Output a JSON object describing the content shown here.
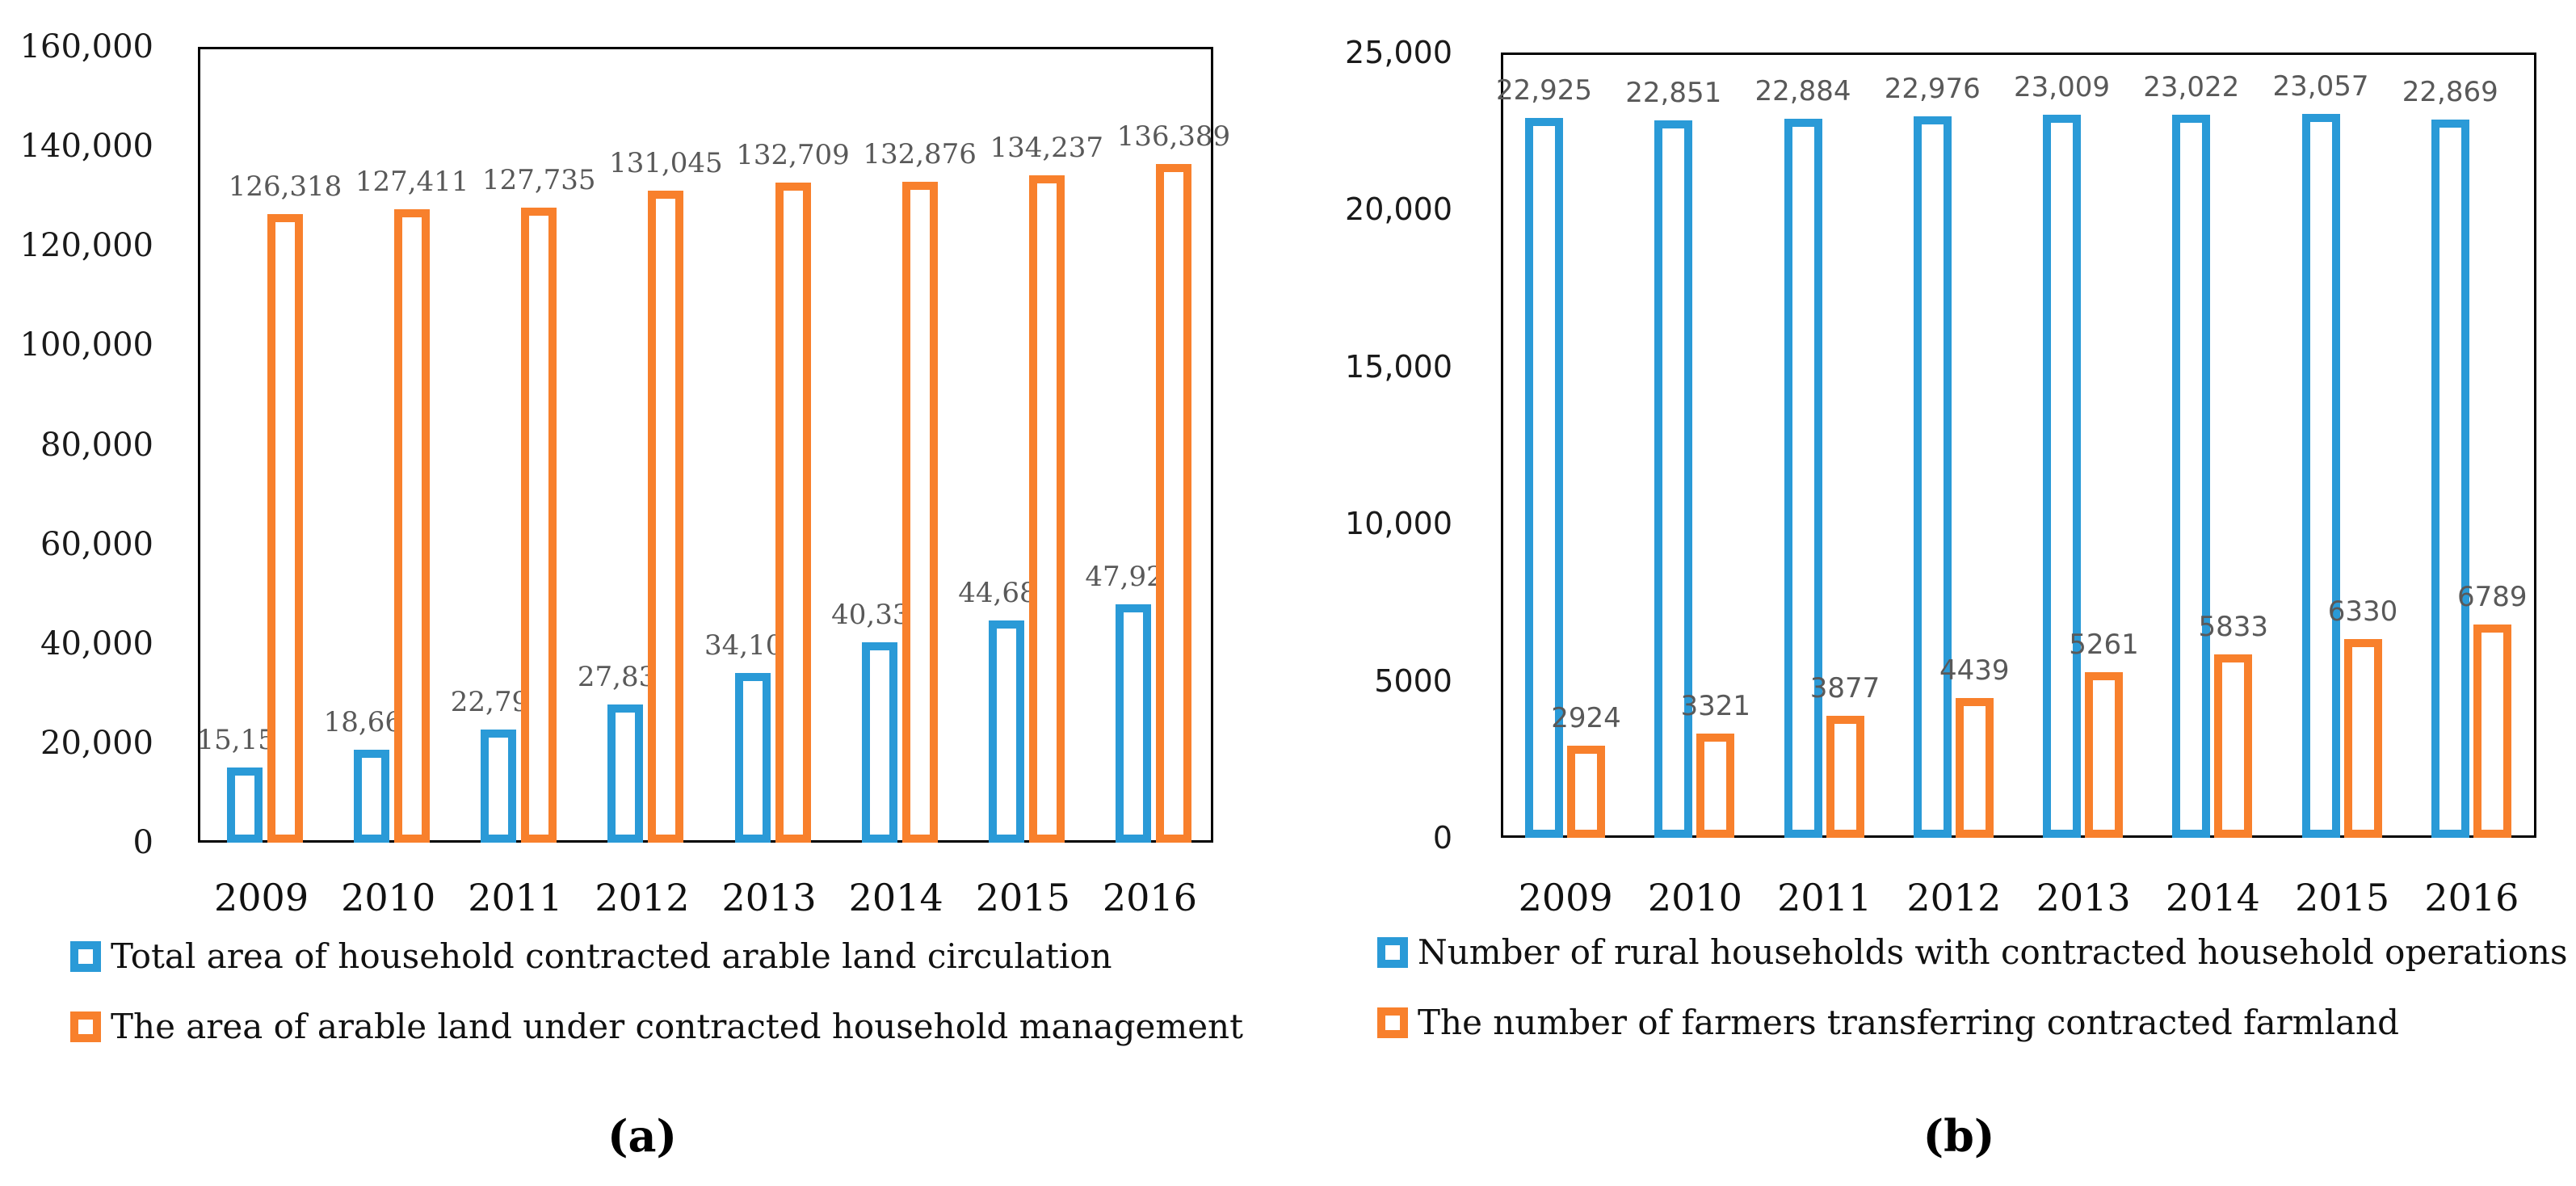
{
  "figure": {
    "captions": [
      "(a)",
      "(b)"
    ]
  },
  "colors": {
    "blue": "#2A9AD7",
    "orange": "#F8802C",
    "data_label_gray": "#595959",
    "axis_black": "#000000",
    "background": "#FFFFFF"
  },
  "chart_data": [
    {
      "id": "a",
      "type": "bar",
      "title": "",
      "xlabel": "",
      "ylabel": "",
      "caption": "(a)",
      "grid": false,
      "legend_position": "bottom-left",
      "categories": [
        "2009",
        "2010",
        "2011",
        "2012",
        "2013",
        "2014",
        "2015",
        "2016"
      ],
      "ylim": [
        0,
        160000
      ],
      "yticks": [
        {
          "value": 160000,
          "label": "160,000"
        },
        {
          "value": 140000,
          "label": "140,000"
        },
        {
          "value": 120000,
          "label": "120,000"
        },
        {
          "value": 100000,
          "label": "100,000"
        },
        {
          "value": 80000,
          "label": "80,000"
        },
        {
          "value": 60000,
          "label": "60,000"
        },
        {
          "value": 40000,
          "label": "40,000"
        },
        {
          "value": 20000,
          "label": "20,000"
        },
        {
          "value": 0,
          "label": "0"
        }
      ],
      "series": [
        {
          "key": "blue",
          "name": "Total area of household contracted arable land circulation",
          "color": "#2A9AD7",
          "values": [
            15154,
            18668,
            22793,
            27833,
            34102,
            40339,
            44683,
            47921
          ],
          "labels": [
            "15,154",
            "18,668",
            "22,793",
            "27,833",
            "34,102",
            "40,339",
            "44,683",
            "47,921"
          ]
        },
        {
          "key": "orange",
          "name": "The area of arable land under contracted household management",
          "color": "#F8802C",
          "values": [
            126318,
            127411,
            127735,
            131045,
            132709,
            132876,
            134237,
            136389
          ],
          "labels": [
            "126,318",
            "127,411",
            "127,735",
            "131,045",
            "132,709",
            "132,876",
            "134,237",
            "136,389"
          ]
        }
      ]
    },
    {
      "id": "b",
      "type": "bar",
      "title": "",
      "xlabel": "",
      "ylabel": "",
      "caption": "(b)",
      "grid": false,
      "legend_position": "bottom-left",
      "categories": [
        "2009",
        "2010",
        "2011",
        "2012",
        "2013",
        "2014",
        "2015",
        "2016"
      ],
      "ylim": [
        0,
        25000
      ],
      "yticks": [
        {
          "value": 25000,
          "label": "25,000"
        },
        {
          "value": 20000,
          "label": "20,000"
        },
        {
          "value": 15000,
          "label": "15,000"
        },
        {
          "value": 10000,
          "label": "10,000"
        },
        {
          "value": 5000,
          "label": "5000"
        },
        {
          "value": 0,
          "label": "0"
        }
      ],
      "series": [
        {
          "key": "blue",
          "name": "Number of rural households with contracted household operations",
          "color": "#2A9AD7",
          "values": [
            22925,
            22851,
            22884,
            22976,
            23009,
            23022,
            23057,
            22869
          ],
          "labels": [
            "22,925",
            "22,851",
            "22,884",
            "22,976",
            "23,009",
            "23,022",
            "23,057",
            "22,869"
          ]
        },
        {
          "key": "orange",
          "name": "The number of farmers transferring contracted farmland",
          "color": "#F8802C",
          "values": [
            2924,
            3321,
            3877,
            4439,
            5261,
            5833,
            6330,
            6789
          ],
          "labels": [
            "2924",
            "3321",
            "3877",
            "4439",
            "5261",
            "5833",
            "6330",
            "6789"
          ]
        }
      ]
    }
  ]
}
